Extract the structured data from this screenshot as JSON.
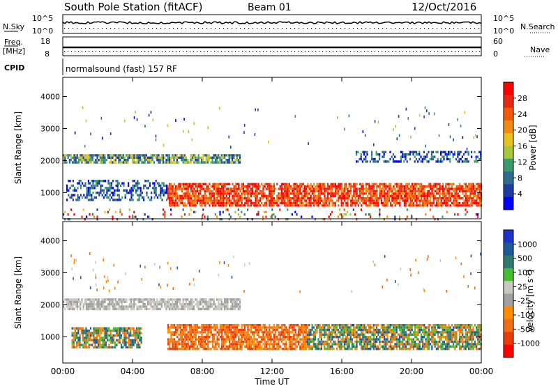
{
  "header": {
    "station": "South Pole Station (fitACF)",
    "beam": "Beam 01",
    "date": "12/Oct/2016"
  },
  "strip": {
    "nsky_label": "N.Sky",
    "nsky_ticks": [
      "10^5",
      "10^0"
    ],
    "nsearch_label": "N.Search",
    "nsearch_ticks": [
      "10^5",
      "10^0"
    ],
    "freq_label": "Freq.",
    "freq_unit": "[MHz]",
    "freq_ticks": [
      "18",
      "8"
    ],
    "nave_label": "Nave",
    "nave_ticks": [
      "60",
      "0"
    ],
    "cpid_label": "CPID",
    "cpid_text": "normalsound (fast) 157 RF"
  },
  "colors": {
    "power_scale": [
      "#0000ff",
      "#1e3ca0",
      "#2e6e8c",
      "#3c9a6e",
      "#a8c83c",
      "#e8c020",
      "#f08c14",
      "#f05a0a",
      "#e82814",
      "#ff0000"
    ],
    "velocity_scale": [
      "#1e32c8",
      "#1e5a96",
      "#2e7a6e",
      "#46be2e",
      "#c8c8c0",
      "#a0a0a0",
      "#ff8c00",
      "#f06e14",
      "#e83c0a",
      "#ff0000"
    ]
  },
  "chart_data": [
    {
      "type": "heatmap",
      "title": "Power",
      "ylabel": "Slant Range [km]",
      "xlabel": "Time UT",
      "x_ticks": [
        "00:00",
        "04:00",
        "08:00",
        "12:00",
        "16:00",
        "20:00",
        "00:00"
      ],
      "y_ticks": [
        1000,
        2000,
        3000,
        4000
      ],
      "ylim": [
        180,
        4600
      ],
      "xlim_hours": [
        0,
        24
      ],
      "colorbar": {
        "label": "Power [dB]",
        "ticks": [
          4,
          8,
          12,
          16,
          20,
          24,
          28
        ]
      },
      "bands": [
        {
          "t0": 0.0,
          "t1": 10.2,
          "r0": 1950,
          "r1": 2200,
          "level": "moderate"
        },
        {
          "t0": 16.8,
          "t1": 24.0,
          "r0": 2000,
          "r1": 2300,
          "level": "weak"
        },
        {
          "t0": 6.0,
          "t1": 24.0,
          "r0": 600,
          "r1": 1300,
          "level": "strong"
        },
        {
          "t0": 0.2,
          "t1": 6.0,
          "r0": 800,
          "r1": 1400,
          "level": "weak"
        },
        {
          "t0": 0.0,
          "t1": 24.0,
          "r0": 200,
          "r1": 500,
          "level": "sparse"
        }
      ]
    },
    {
      "type": "heatmap",
      "title": "Velocity",
      "ylabel": "Slant Range [km]",
      "xlabel": "Time UT",
      "x_ticks": [
        "00:00",
        "04:00",
        "08:00",
        "12:00",
        "16:00",
        "20:00",
        "00:00"
      ],
      "y_ticks": [
        1000,
        2000,
        3000,
        4000
      ],
      "ylim": [
        180,
        4600
      ],
      "xlim_hours": [
        0,
        24
      ],
      "colorbar": {
        "label": "Velocity [m s^-1]",
        "ticks": [
          "1000",
          "500",
          "100",
          "25",
          "-25",
          "-100",
          "-500",
          "-1000"
        ]
      },
      "bands": [
        {
          "t0": 0.0,
          "t1": 10.2,
          "r0": 1900,
          "r1": 2200,
          "level": "near-zero"
        },
        {
          "t0": 6.0,
          "t1": 14.0,
          "r0": 600,
          "r1": 1400,
          "level": "away"
        },
        {
          "t0": 14.0,
          "t1": 24.0,
          "r0": 600,
          "r1": 1400,
          "level": "mixed"
        },
        {
          "t0": 0.5,
          "t1": 4.5,
          "r0": 700,
          "r1": 1300,
          "level": "mixed"
        }
      ]
    }
  ],
  "axis": {
    "xlabel": "Time UT",
    "ylabel": "Slant Range [km]",
    "power_cbar_label": "Power [dB]",
    "vel_cbar_label": "Velocity"
  }
}
